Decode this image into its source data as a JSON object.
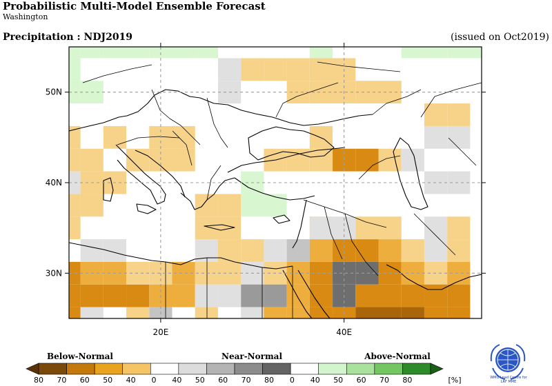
{
  "header": {
    "title": "Probabilistic Multi-Model Ensemble Forecast",
    "subtitle": "Washington",
    "variable": "Precipitation : NDJ2019",
    "issued": "(issued on Oct2019)"
  },
  "map": {
    "lon_range": [
      10,
      55
    ],
    "lat_range": [
      25,
      55
    ],
    "grid_lons": [
      20,
      40
    ],
    "grid_lats": [
      30,
      40,
      50
    ],
    "lon_labels": [
      "20E",
      "40E"
    ],
    "lat_labels": [
      "30N",
      "40N",
      "50N"
    ]
  },
  "legend": {
    "categories": [
      "Below-Normal",
      "Near-Normal",
      "Above-Normal"
    ],
    "tick_labels": [
      "80",
      "70",
      "60",
      "50",
      "40",
      "0",
      "40",
      "50",
      "60",
      "70",
      "80",
      "0",
      "40",
      "50",
      "60",
      "70",
      "80"
    ],
    "unit": "[%]",
    "colors": [
      "#7b4a0a",
      "#c47a0a",
      "#e8a41e",
      "#f5c565",
      "#ffffff",
      "#dcdcdc",
      "#b4b4b4",
      "#8c8c8c",
      "#646464",
      "#ffffff",
      "#d2f5cd",
      "#a8e29c",
      "#72c763",
      "#2e8b2a"
    ]
  },
  "colors": {
    "bn40": "#f7d38a",
    "bn50": "#eeae3d",
    "bn60": "#d98a12",
    "bn70": "#a8650a",
    "nn40": "#e0e0e0",
    "nn50": "#c4c4c4",
    "nn60": "#9a9a9a",
    "nn70": "#6e6e6e",
    "an40": "#d8f7d0"
  },
  "logo": {
    "text_line1": "WMO Lead Centre for",
    "text_line2": "LRF MME"
  }
}
